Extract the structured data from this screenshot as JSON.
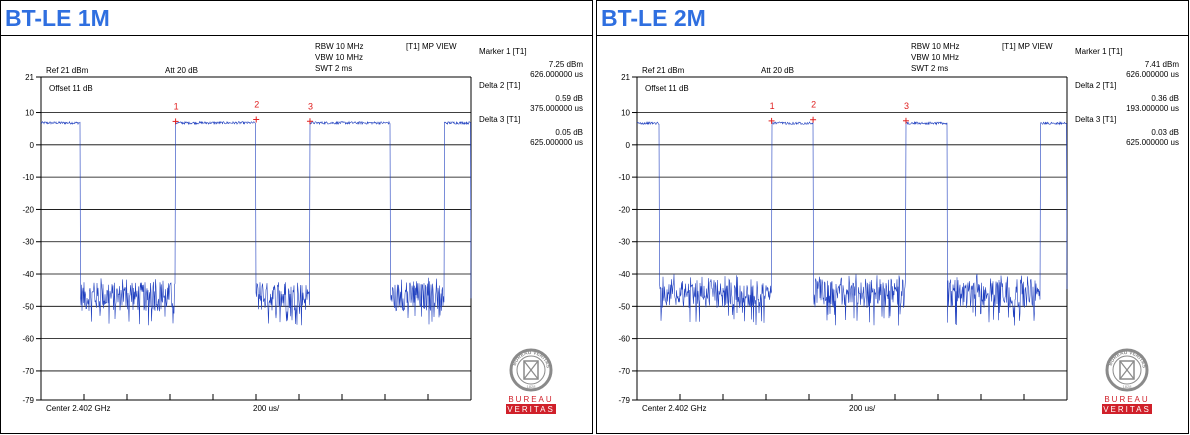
{
  "colors": {
    "title": "#2f6fe0",
    "trace": "#1f3fbf",
    "marker": "#e02020",
    "grid": "#000000",
    "logo_red": "#d0202a",
    "logo_gray": "#8a8a8a"
  },
  "panels": [
    {
      "title": "BT-LE 1M",
      "header": {
        "ref": "Ref 21 dBm",
        "att": "Att  20 dB",
        "rbw": "RBW 10 MHz",
        "vbw": "VBW 10 MHz",
        "swt": "SWT 2 ms",
        "view": "[T1] MP VIEW",
        "offset": "Offset 11 dB",
        "center": "Center 2.402 GHz",
        "span": "200 us/"
      },
      "marker_info": [
        {
          "label": "Marker 1 [T1]",
          "value": "7.25 dBm",
          "time": "626.000000 us"
        },
        {
          "label": "Delta 2 [T1]",
          "value": "0.59 dB",
          "time": "375.000000 us"
        },
        {
          "label": "Delta 3 [T1]",
          "value": "0.05 dB",
          "time": "625.000000 us"
        }
      ],
      "logo": {
        "word1": "BUREAU",
        "word2": "VERITAS",
        "ring": "BUREAU VERITAS",
        "year": "1828"
      }
    },
    {
      "title": "BT-LE 2M",
      "header": {
        "ref": "Ref 21 dBm",
        "att": "Att  20 dB",
        "rbw": "RBW 10 MHz",
        "vbw": "VBW 10 MHz",
        "swt": "SWT 2 ms",
        "view": "[T1] MP VIEW",
        "offset": "Offset 11 dB",
        "center": "Center 2.402 GHz",
        "span": "200 us/"
      },
      "marker_info": [
        {
          "label": "Marker 1 [T1]",
          "value": "7.41 dBm",
          "time": "626.000000 us"
        },
        {
          "label": "Delta 2 [T1]",
          "value": "0.36 dB",
          "time": "193.000000 us"
        },
        {
          "label": "Delta 3 [T1]",
          "value": "0.03 dB",
          "time": "625.000000 us"
        }
      ],
      "logo": {
        "word1": "BUREAU",
        "word2": "VERITAS",
        "ring": "BUREAU VERITAS",
        "year": "1828"
      }
    }
  ],
  "chart_data": [
    {
      "type": "line",
      "title": "BT-LE 1M",
      "xlabel": "",
      "ylabel": "",
      "x_unit": "us",
      "xlim": [
        0,
        2000
      ],
      "ylim": [
        -79,
        21
      ],
      "yticks": [
        21,
        10,
        0,
        -10,
        -20,
        -30,
        -40,
        -50,
        -60,
        -70,
        -79
      ],
      "grid": true,
      "high_level_dbm": 6.8,
      "noise_floor_dbm": -47,
      "noise_range_dbm": [
        -56,
        -41
      ],
      "on_segments_us": [
        [
          0,
          183
        ],
        [
          625,
          1000
        ],
        [
          1250,
          1625
        ],
        [
          1875,
          2000
        ]
      ],
      "markers": [
        {
          "label": "1",
          "x": 626,
          "y": 7.25
        },
        {
          "label": "2",
          "x": 1001,
          "y": 7.84
        },
        {
          "label": "3",
          "x": 1251,
          "y": 7.3
        }
      ]
    },
    {
      "type": "line",
      "title": "BT-LE 2M",
      "xlabel": "",
      "ylabel": "",
      "x_unit": "us",
      "xlim": [
        0,
        2000
      ],
      "ylim": [
        -79,
        21
      ],
      "yticks": [
        21,
        10,
        0,
        -10,
        -20,
        -30,
        -40,
        -50,
        -60,
        -70,
        -79
      ],
      "grid": true,
      "high_level_dbm": 6.7,
      "noise_floor_dbm": -46,
      "noise_range_dbm": [
        -56,
        -40
      ],
      "on_segments_us": [
        [
          0,
          103
        ],
        [
          626,
          819
        ],
        [
          1251,
          1444
        ],
        [
          1876,
          2000
        ]
      ],
      "markers": [
        {
          "label": "1",
          "x": 626,
          "y": 7.41
        },
        {
          "label": "2",
          "x": 819,
          "y": 7.77
        },
        {
          "label": "3",
          "x": 1251,
          "y": 7.44
        }
      ]
    }
  ]
}
